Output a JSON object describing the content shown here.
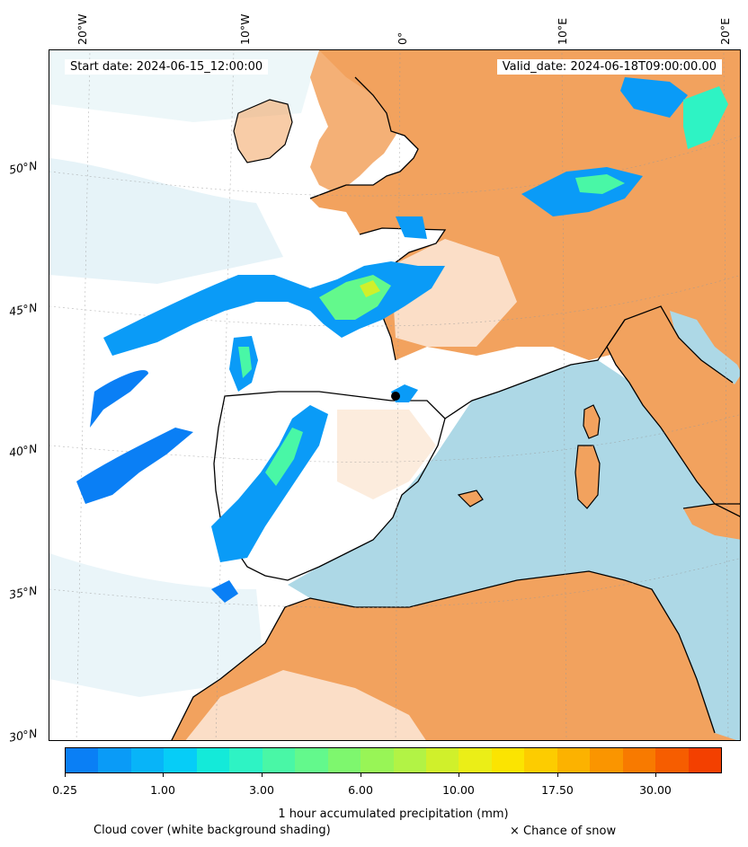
{
  "map": {
    "start_date": "Start date: 2024-06-15_12:00:00",
    "valid_date": "Valid_date: 2024-06-18T09:00:00.00",
    "longitude_labels": [
      "20°W",
      "10°W",
      "0°",
      "10°E",
      "20°E"
    ],
    "latitude_labels": [
      "50°N",
      "45°N",
      "40°N",
      "35°N",
      "30°N"
    ],
    "colors": {
      "land": "#f2a25e",
      "sea": "#add8e6",
      "cloud": "#ffffff",
      "coastline": "#000000"
    }
  },
  "colorbar": {
    "ticks": [
      "0.25",
      "1.00",
      "3.00",
      "6.00",
      "10.00",
      "17.50",
      "30.00"
    ],
    "label": "1 hour accumulated precipitation (mm)",
    "colors": [
      "#0a7ff5",
      "#0a9bf7",
      "#08b4f8",
      "#06cdf7",
      "#14ead9",
      "#2ef3c4",
      "#49f7a6",
      "#63f98c",
      "#7ef76e",
      "#98f556",
      "#b2f345",
      "#d0f02b",
      "#ebee17",
      "#fbe401",
      "#fdcc00",
      "#fcb200",
      "#fa9500",
      "#f87a00",
      "#f65d00",
      "#f34000"
    ]
  },
  "legend": {
    "cloud_cover": "Cloud cover (white background shading)",
    "snow": "× Chance of snow"
  }
}
